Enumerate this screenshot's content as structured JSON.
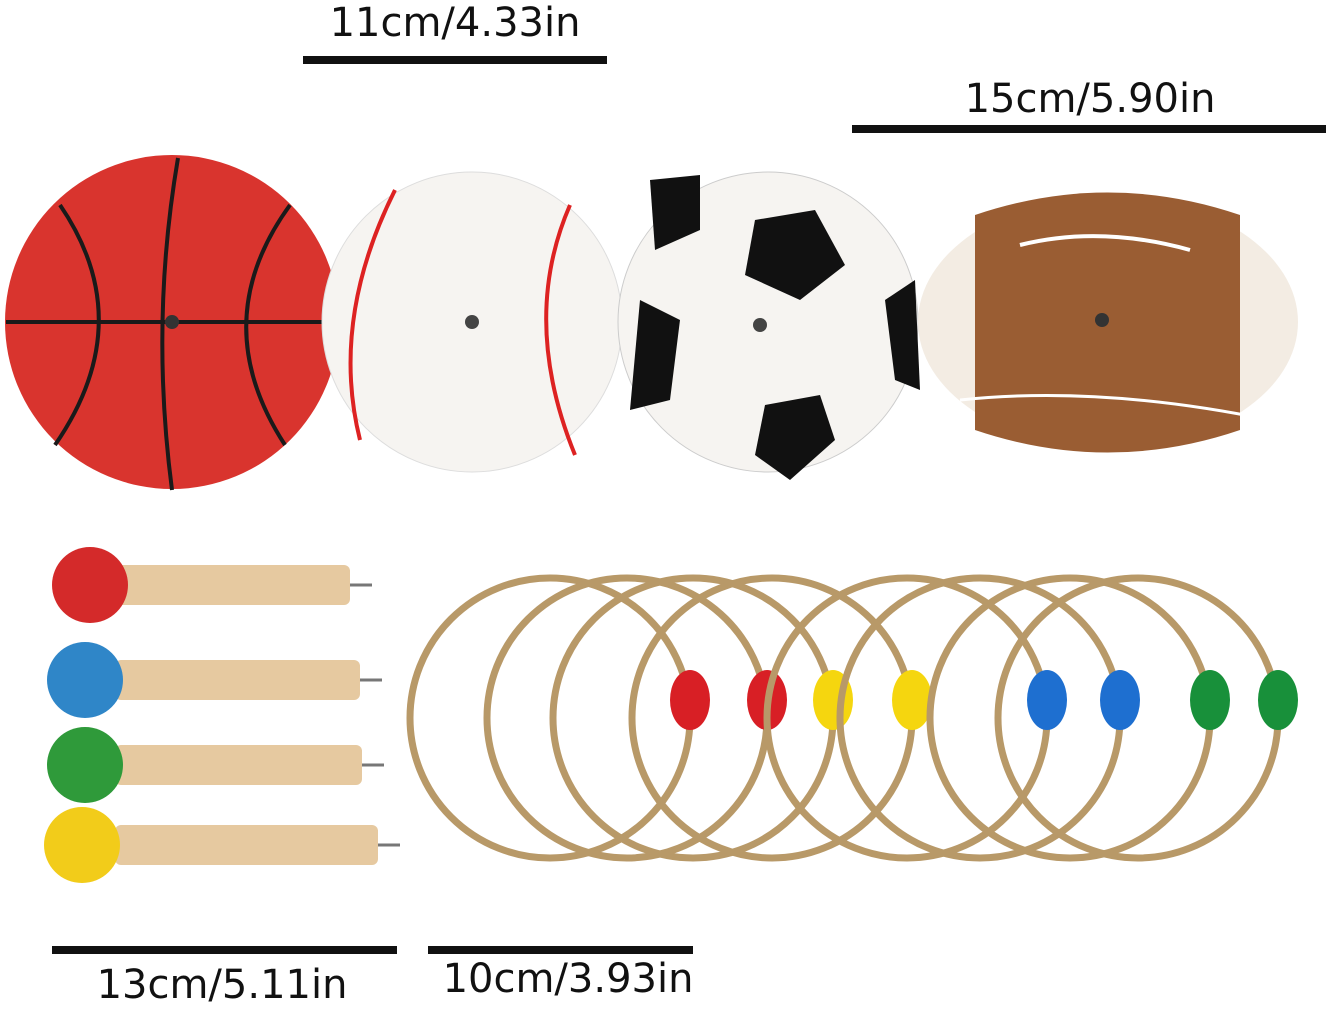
{
  "dimensions": {
    "baseball_width": "11cm/4.33in",
    "football_width": "15cm/5.90in",
    "peg_length": "13cm/5.11in",
    "ring_diameter": "10cm/3.93in"
  },
  "items": {
    "targets": [
      "basketball",
      "baseball",
      "soccer-ball",
      "football"
    ],
    "peg_colors": [
      "#d42a2a",
      "#2f86c8",
      "#2f9a3a",
      "#f2cc1a"
    ],
    "ring_bead_colors": [
      "#d81f25",
      "#d81f25",
      "#f5d60f",
      "#f5d60f",
      "#1e6fd0",
      "#1e6fd0",
      "#18903a",
      "#18903a"
    ]
  },
  "colors": {
    "basketball": "#d9342e",
    "football": "#9a5d33",
    "rope": "#b89968",
    "wood": "#e6c9a0"
  }
}
